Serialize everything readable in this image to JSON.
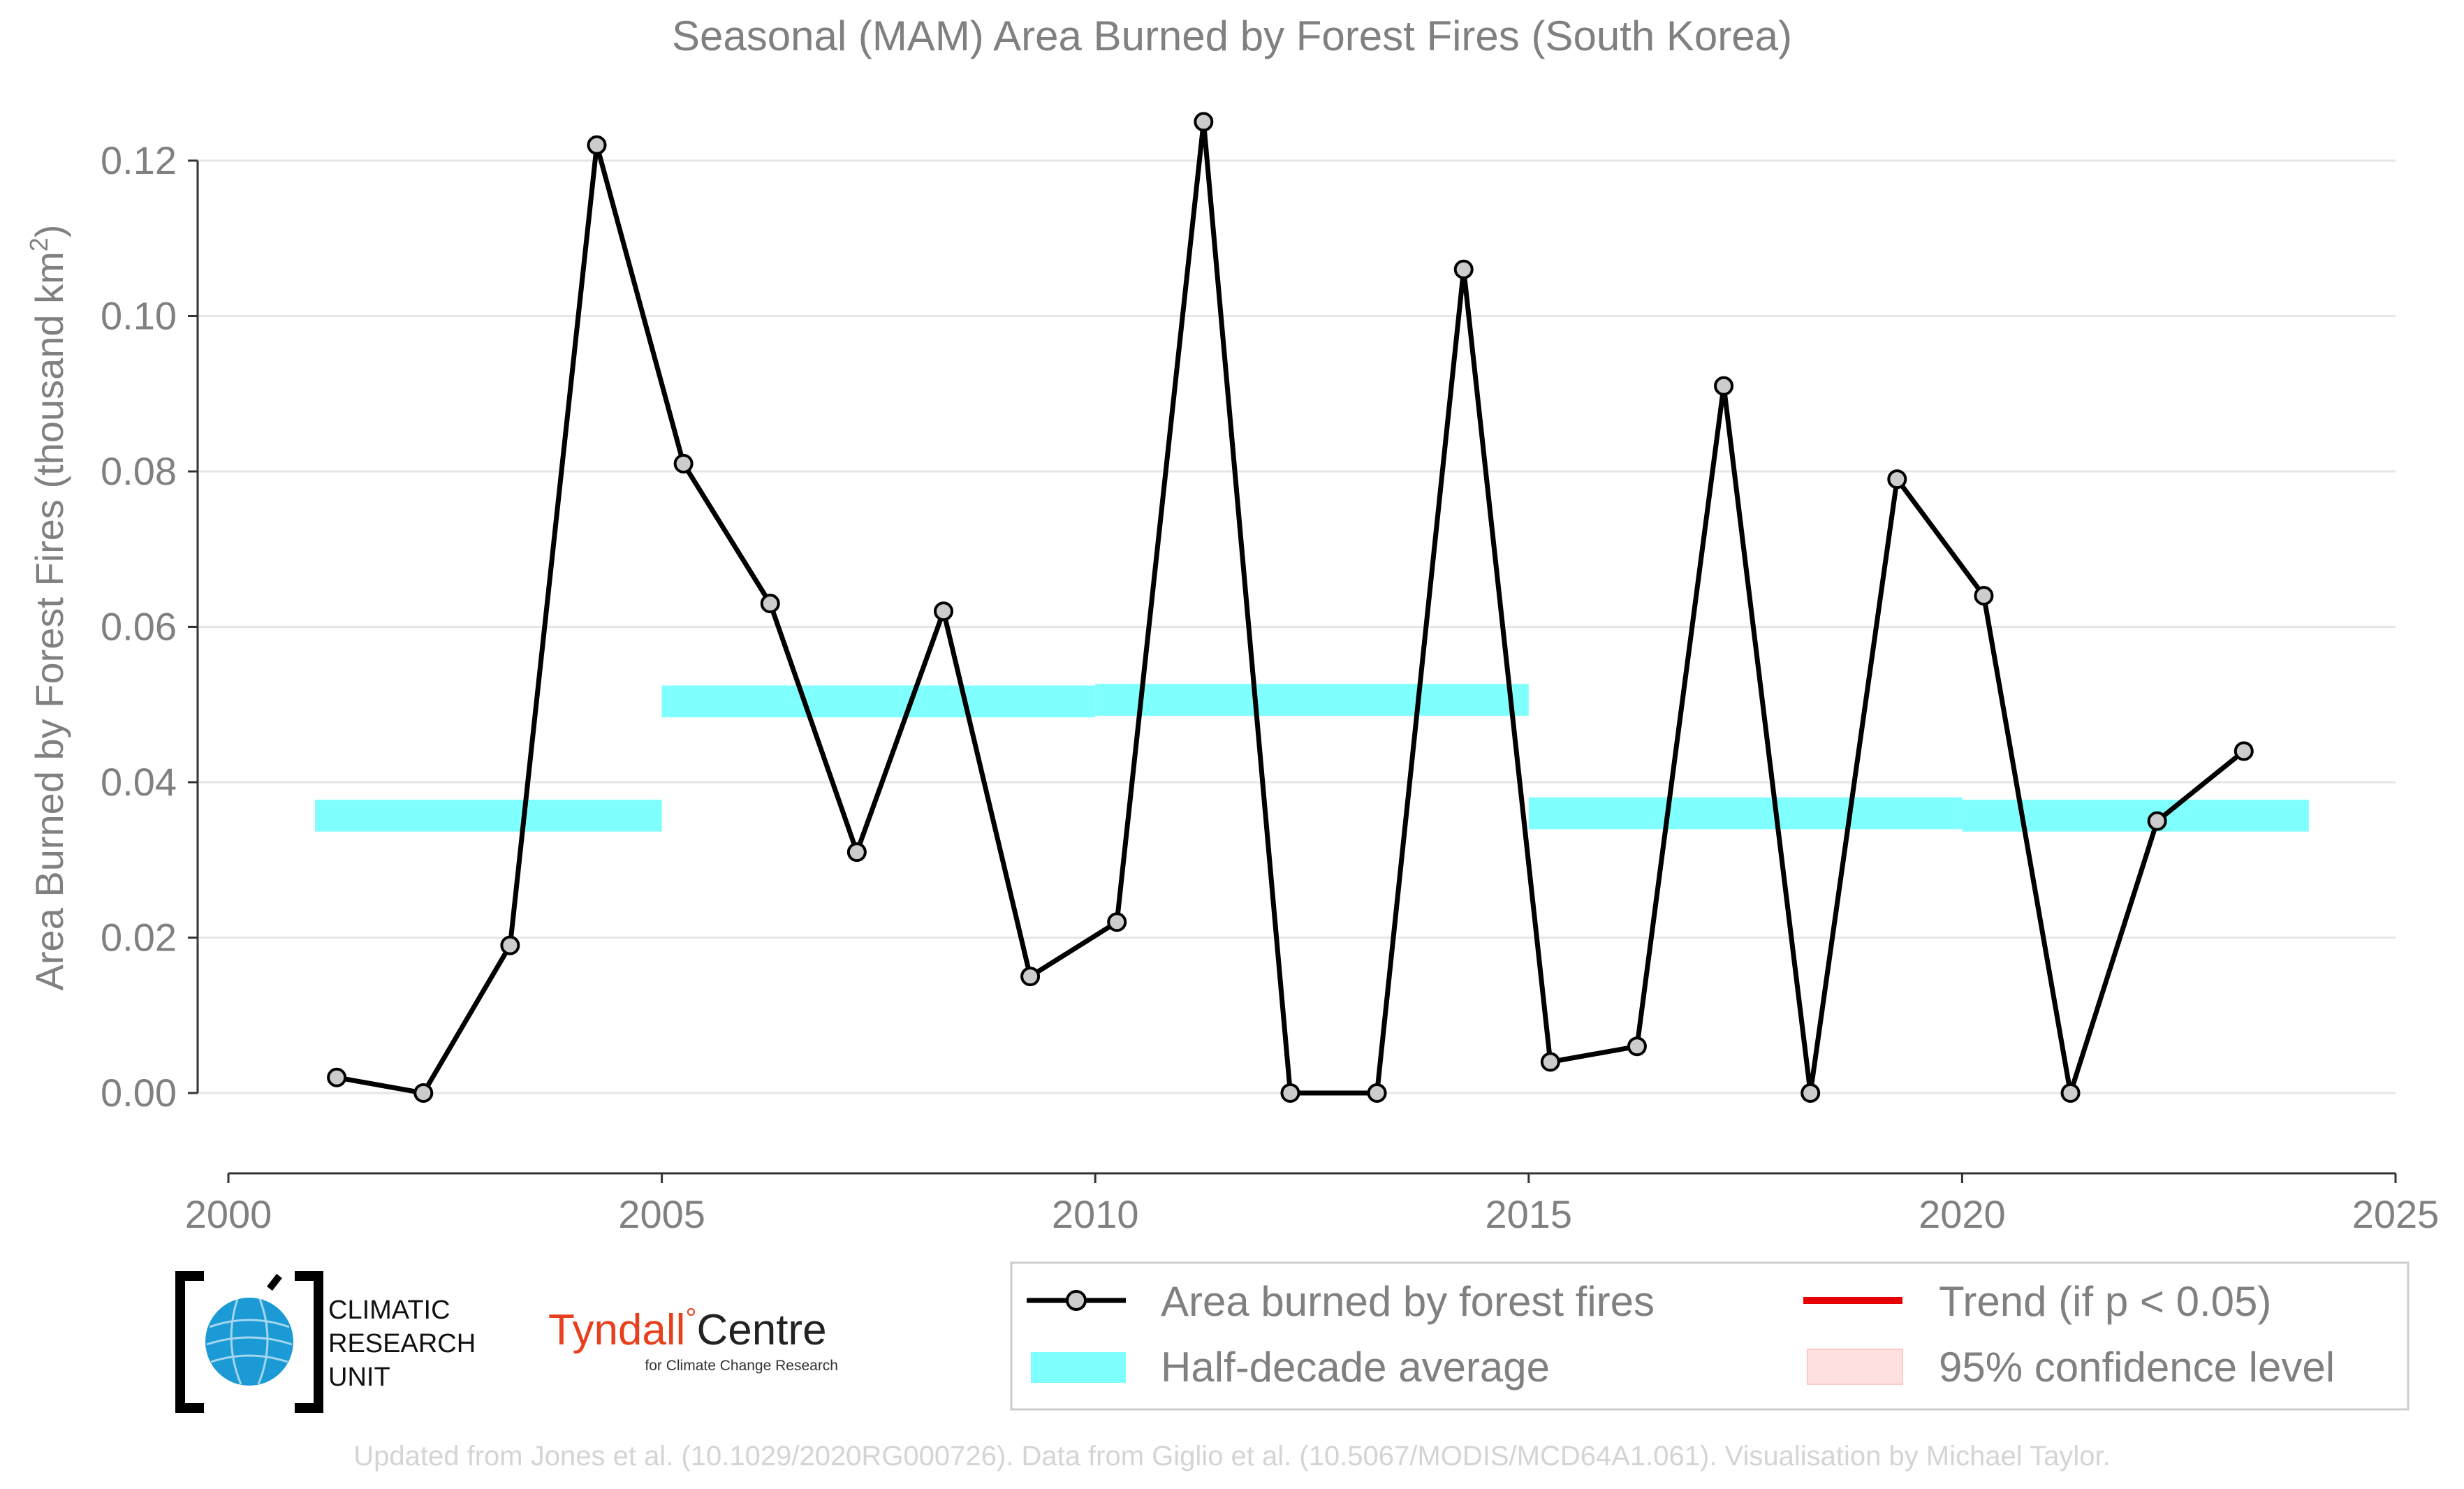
{
  "chart_data": {
    "type": "line",
    "title": "Seasonal (MAM) Area Burned by Forest Fires (South Korea)",
    "xlabel": "",
    "ylabel": "Area Burned by Forest Fires (thousand km",
    "ylabel_sup": "2",
    "ylabel_end": ")",
    "xlim": [
      2000,
      2025
    ],
    "ylim": [
      -0.01,
      0.13
    ],
    "x_ticks": [
      2000,
      2005,
      2010,
      2015,
      2020,
      2025
    ],
    "x_tick_labels": [
      "2000",
      "2005",
      "2010",
      "2015",
      "2020",
      "2025"
    ],
    "y_ticks": [
      0,
      0.02,
      0.04,
      0.06,
      0.08,
      0.1,
      0.12
    ],
    "y_tick_labels": [
      "0.00",
      "0.02",
      "0.04",
      "0.06",
      "0.08",
      "0.10",
      "0.12"
    ],
    "grid": "horizontal",
    "series": [
      {
        "name": "Area burned by forest fires",
        "color": "#000000",
        "marker_fill": "#cccccc",
        "x": [
          2001.25,
          2002.25,
          2003.25,
          2004.25,
          2005.25,
          2006.25,
          2007.25,
          2008.25,
          2009.25,
          2010.25,
          2011.25,
          2012.25,
          2013.25,
          2014.25,
          2015.25,
          2016.25,
          2017.25,
          2018.25,
          2019.25,
          2020.25,
          2021.25,
          2022.25,
          2023.25
        ],
        "values": [
          0.002,
          0.0,
          0.019,
          0.122,
          0.081,
          0.063,
          0.031,
          0.062,
          0.015,
          0.022,
          0.125,
          0.0,
          0.0,
          0.106,
          0.004,
          0.006,
          0.091,
          0.0,
          0.079,
          0.064,
          0.0,
          0.035,
          0.044
        ]
      }
    ],
    "half_decade_average": {
      "name": "Half-decade average",
      "color": "#80ffff",
      "segments": [
        {
          "x": [
            2001,
            2005
          ],
          "value": 0.0357
        },
        {
          "x": [
            2005,
            2010
          ],
          "value": 0.0504
        },
        {
          "x": [
            2010,
            2015
          ],
          "value": 0.0506
        },
        {
          "x": [
            2015,
            2020
          ],
          "value": 0.036
        },
        {
          "x": [
            2020,
            2024
          ],
          "value": 0.0357
        }
      ]
    },
    "legend": {
      "placement": "bottom-right",
      "items": [
        {
          "label": "Area burned by forest fires",
          "kind": "line-marker",
          "color": "#000000"
        },
        {
          "label": "Trend (if p < 0.05)",
          "kind": "line",
          "color": "#e60000"
        },
        {
          "label": "Half-decade average",
          "kind": "band",
          "color": "#80ffff"
        },
        {
          "label": "95% confidence level",
          "kind": "patch",
          "color": "#ffe0e0"
        }
      ]
    }
  },
  "logos": {
    "cru": {
      "line1": "CLIMATIC",
      "line2": "RESEARCH",
      "line3": "UNIT",
      "globe_color": "#1b9ad6"
    },
    "tyndall": {
      "main": "Tyndall",
      "degree": "°",
      "centre": "Centre",
      "sub": "for Climate Change Research",
      "color": "#e8401c"
    }
  },
  "footer": "Updated from Jones et al. (10.1029/2020RG000726). Data from Giglio et al. (10.5067/MODIS/MCD64A1.061). Visualisation by Michael Taylor."
}
